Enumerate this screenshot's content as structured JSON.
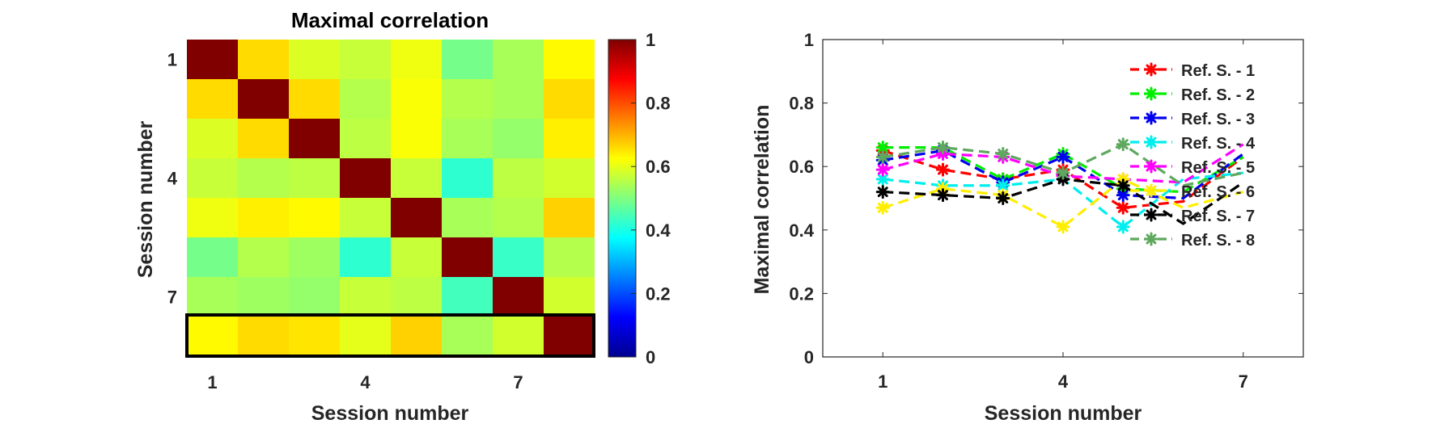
{
  "chart_data": [
    {
      "type": "heatmap",
      "title": "Maximal correlation",
      "xlabel": "Session number",
      "ylabel": "Session number",
      "x_ticks": [
        "1",
        "4",
        "7"
      ],
      "y_ticks": [
        "1",
        "4",
        "7"
      ],
      "x_tick_positions": [
        1,
        4,
        7
      ],
      "y_tick_positions": [
        1,
        4,
        7
      ],
      "rows": 8,
      "cols": 8,
      "values": [
        [
          1.0,
          0.66,
          0.59,
          0.57,
          0.61,
          0.49,
          0.54,
          0.63
        ],
        [
          0.66,
          1.0,
          0.66,
          0.55,
          0.62,
          0.55,
          0.54,
          0.66
        ],
        [
          0.59,
          0.66,
          1.0,
          0.56,
          0.62,
          0.54,
          0.52,
          0.64
        ],
        [
          0.57,
          0.55,
          0.56,
          1.0,
          0.57,
          0.42,
          0.56,
          0.58
        ],
        [
          0.61,
          0.64,
          0.63,
          0.57,
          1.0,
          0.54,
          0.55,
          0.67
        ],
        [
          0.49,
          0.55,
          0.53,
          0.42,
          0.57,
          1.0,
          0.43,
          0.55
        ],
        [
          0.54,
          0.53,
          0.52,
          0.57,
          0.56,
          0.44,
          1.0,
          0.58
        ],
        [
          0.63,
          0.66,
          0.65,
          0.6,
          0.67,
          0.54,
          0.58,
          1.0
        ]
      ],
      "highlighted_row": 8,
      "colorbar": {
        "min": 0,
        "max": 1,
        "ticks": [
          "0",
          "0.2",
          "0.4",
          "0.6",
          "0.8",
          "1"
        ],
        "tick_values": [
          0,
          0.2,
          0.4,
          0.6,
          0.8,
          1
        ],
        "colormap": "jet"
      }
    },
    {
      "type": "line",
      "title": "",
      "xlabel": "Session number",
      "ylabel": "Maximal correlation",
      "xlim": [
        0,
        8
      ],
      "ylim": [
        0,
        1
      ],
      "x_ticks": [
        "1",
        "4",
        "7"
      ],
      "x_tick_values": [
        1,
        4,
        7
      ],
      "y_ticks": [
        "0",
        "0.2",
        "0.4",
        "0.6",
        "0.8",
        "1"
      ],
      "y_tick_values": [
        0,
        0.2,
        0.4,
        0.6,
        0.8,
        1
      ],
      "x": [
        1,
        2,
        3,
        4,
        5,
        6,
        7
      ],
      "legend_position": "top-right",
      "series": [
        {
          "name": "Ref. S. - 1",
          "color": "#ff0000",
          "values": [
            0.65,
            0.59,
            0.56,
            0.59,
            0.47,
            0.49,
            0.63
          ]
        },
        {
          "name": "Ref. S. - 2",
          "color": "#00ee00",
          "values": [
            0.66,
            0.66,
            0.56,
            0.64,
            0.53,
            0.52,
            0.63
          ]
        },
        {
          "name": "Ref. S. - 3",
          "color": "#0000ee",
          "values": [
            0.62,
            0.65,
            0.55,
            0.63,
            0.51,
            0.5,
            0.64
          ]
        },
        {
          "name": "Ref. S. - 4",
          "color": "#00eeee",
          "values": [
            0.56,
            0.54,
            0.54,
            0.56,
            0.41,
            0.56,
            0.58
          ]
        },
        {
          "name": "Ref. S. - 5",
          "color": "#ff00ff",
          "values": [
            0.59,
            0.64,
            0.63,
            0.57,
            0.56,
            0.55,
            0.67
          ]
        },
        {
          "name": "Ref. S. - 6",
          "color": "#ffee00",
          "values": [
            0.47,
            0.53,
            0.51,
            0.41,
            0.56,
            0.47,
            0.52
          ]
        },
        {
          "name": "Ref. S. - 7",
          "color": "#000000",
          "values": [
            0.52,
            0.51,
            0.5,
            0.56,
            0.54,
            0.42,
            0.55
          ]
        },
        {
          "name": "Ref. S. - 8",
          "color": "#5fa85f",
          "values": [
            0.63,
            0.66,
            0.64,
            0.58,
            0.67,
            0.54,
            0.58
          ]
        }
      ]
    }
  ]
}
